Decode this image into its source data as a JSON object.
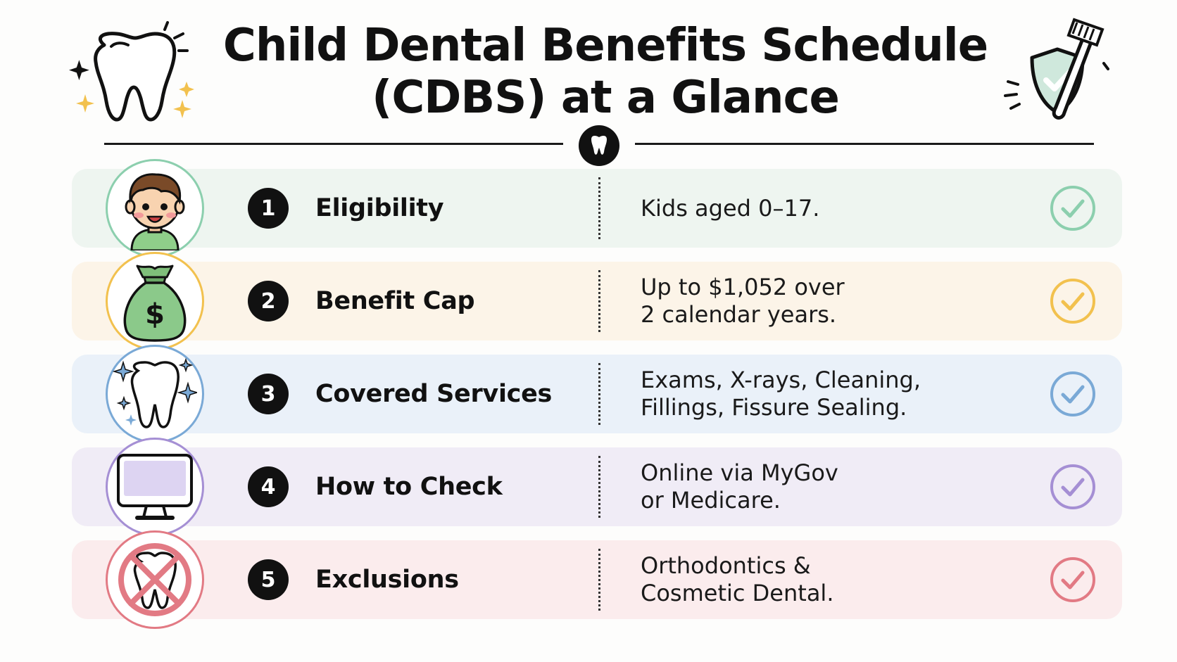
{
  "header": {
    "title_line1": "Child Dental Benefits Schedule",
    "title_line2": "(CDBS) at a Glance",
    "left_icon": "tooth-sparkle-icon",
    "right_icon": "shield-toothbrush-icon",
    "divider_icon": "tooth-icon"
  },
  "rows": [
    {
      "number": "1",
      "label": "Eligibility",
      "description_lines": [
        "Kids aged 0–17."
      ],
      "icon": "child-face-icon",
      "color": "#8ccfae",
      "background": "#eef5f0"
    },
    {
      "number": "2",
      "label": "Benefit Cap",
      "description_lines": [
        "Up to $1,052 over",
        "2 calendar years."
      ],
      "icon": "money-bag-icon",
      "color": "#f2c14e",
      "background": "#fcf4e8"
    },
    {
      "number": "3",
      "label": "Covered Services",
      "description_lines": [
        "Exams, X-rays, Cleaning,",
        "Fillings, Fissure Sealing."
      ],
      "icon": "clean-tooth-icon",
      "color": "#7aa9d6",
      "background": "#eaf1f9"
    },
    {
      "number": "4",
      "label": "How to Check",
      "description_lines": [
        "Online via MyGov",
        "or Medicare."
      ],
      "icon": "computer-monitor-icon",
      "color": "#a58fd4",
      "background": "#f0ecf6"
    },
    {
      "number": "5",
      "label": "Exclusions",
      "description_lines": [
        "Orthodontics &",
        "Cosmetic Dental."
      ],
      "icon": "no-tooth-icon",
      "color": "#e27a84",
      "background": "#fbeced"
    }
  ]
}
